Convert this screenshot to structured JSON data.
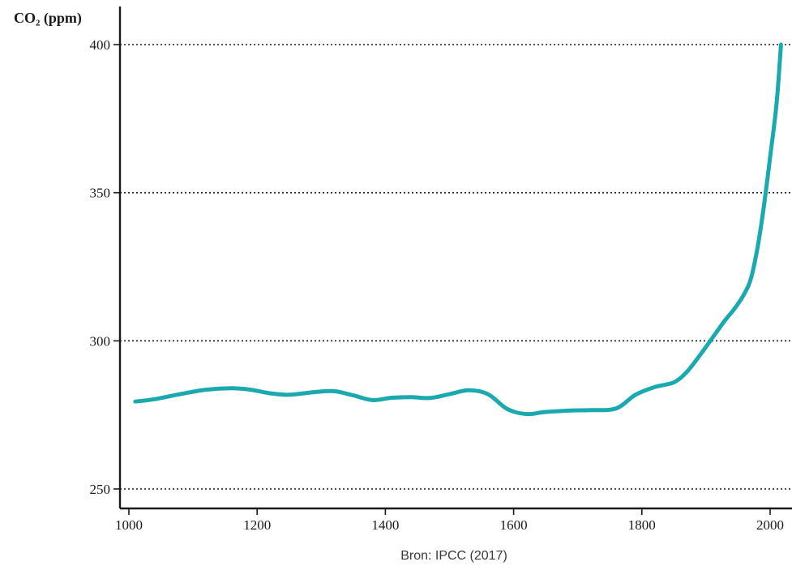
{
  "chart_data": {
    "type": "line",
    "ylabel": "CO₂ (ppm)",
    "source": "Bron: IPCC (2017)",
    "xlim": [
      1000,
      2020
    ],
    "ylim": [
      250,
      400
    ],
    "x_ticks": [
      1000,
      1200,
      1400,
      1600,
      1800,
      2000
    ],
    "y_ticks": [
      250,
      300,
      350,
      400
    ],
    "grid": "horizontal-dotted",
    "colors": {
      "line": "#1aa9ae",
      "axis": "#1a1a1a",
      "grid": "#1a1a1a"
    },
    "series": [
      {
        "x": [
          1010,
          1040,
          1080,
          1120,
          1160,
          1190,
          1220,
          1250,
          1290,
          1320,
          1350,
          1380,
          1410,
          1440,
          1470,
          1500,
          1530,
          1560,
          1590,
          1620,
          1650,
          1690,
          1720,
          1760,
          1790,
          1820,
          1850,
          1870,
          1890,
          1910,
          1930,
          1945,
          1960,
          1970,
          1980,
          1990,
          2000,
          2010,
          2017
        ],
        "y": [
          279.5,
          280.3,
          282,
          283.5,
          284,
          283.5,
          282.3,
          281.8,
          282.7,
          283,
          281.6,
          280,
          280.8,
          281,
          280.7,
          282,
          283.3,
          282,
          277,
          275.3,
          276,
          276.5,
          276.6,
          277.2,
          281.8,
          284.4,
          286,
          289.5,
          295,
          301,
          307,
          311,
          316,
          321,
          331,
          345,
          362,
          380,
          400
        ]
      }
    ]
  }
}
